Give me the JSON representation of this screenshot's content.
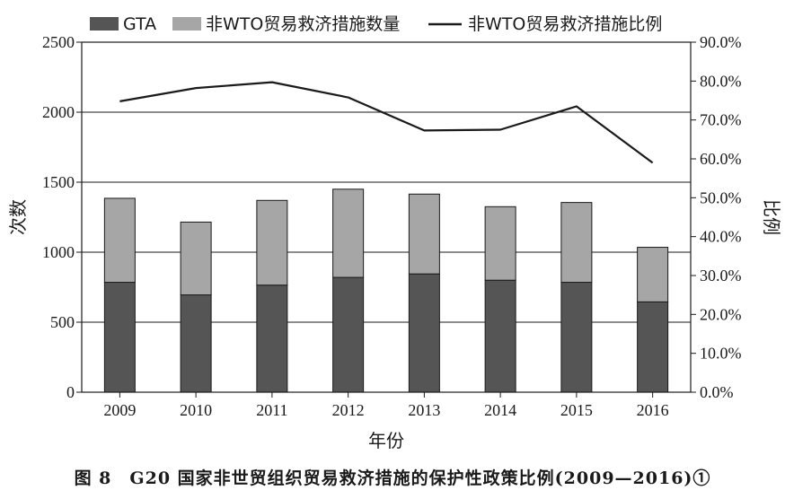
{
  "caption": "图 8　G20 国家非世贸组织贸易救济措施的保护性政策比例(2009—2016)①",
  "chart_data": {
    "type": "bar",
    "categories": [
      "2009",
      "2010",
      "2011",
      "2012",
      "2013",
      "2014",
      "2015",
      "2016"
    ],
    "series": [
      {
        "name": "GTA",
        "kind": "bar",
        "axis": "left",
        "color": "#555555",
        "values": [
          785,
          695,
          765,
          820,
          845,
          800,
          785,
          645
        ]
      },
      {
        "name": "非WTO贸易救济措施数量",
        "kind": "bar-stacked",
        "axis": "left",
        "color": "#a6a6a6",
        "values": [
          600,
          520,
          605,
          630,
          570,
          525,
          570,
          390
        ]
      },
      {
        "name": "非WTO贸易救济措施比例",
        "kind": "line",
        "axis": "right",
        "color": "#1a1a1a",
        "values": [
          74.8,
          78.2,
          79.7,
          75.8,
          67.3,
          67.5,
          73.5,
          59.0
        ]
      }
    ],
    "xlabel": "年份",
    "ylabel": "次数",
    "y2label": "比例",
    "ylim": [
      0,
      2500
    ],
    "y2lim": [
      0,
      90
    ],
    "yticks": [
      "0",
      "500",
      "1000",
      "1500",
      "2000",
      "2500"
    ],
    "y2ticks": [
      "0.0%",
      "10.0%",
      "20.0%",
      "30.0%",
      "40.0%",
      "50.0%",
      "60.0%",
      "70.0%",
      "80.0%",
      "90.0%"
    ],
    "grid": "horizontal",
    "legend": "top"
  }
}
